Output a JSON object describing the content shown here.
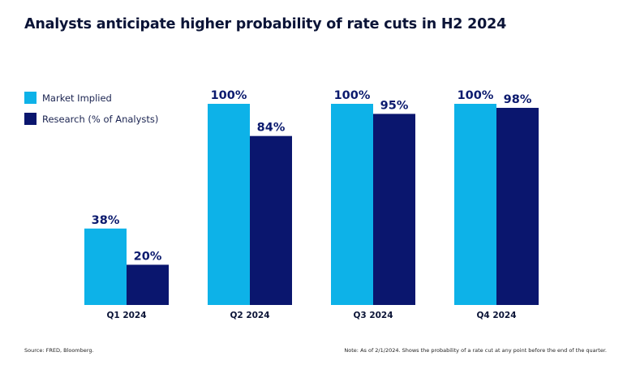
{
  "chart_data": {
    "type": "bar",
    "title": "Analysts anticipate higher probability of rate cuts in H2 2024",
    "categories": [
      "Q1 2024",
      "Q2 2024",
      "Q3 2024",
      "Q4 2024"
    ],
    "series": [
      {
        "name": "Market Implied",
        "color": "#0DB2E8",
        "values": [
          38,
          100,
          100,
          100
        ],
        "labels": [
          "38%",
          "100%",
          "100%",
          "100%"
        ]
      },
      {
        "name": "Research (% of Analysts)",
        "color": "#0A166E",
        "values": [
          20,
          84,
          95,
          98
        ],
        "labels": [
          "20%",
          "84%",
          "95%",
          "98%"
        ]
      }
    ],
    "ylim": [
      0,
      100
    ],
    "grid": false,
    "legend_position": "top-left",
    "source": "Source: FRED, Bloomberg.",
    "note": "Note: As of 2/1/2024. Shows the probability of a rate cut at any point before the end of the quarter."
  }
}
